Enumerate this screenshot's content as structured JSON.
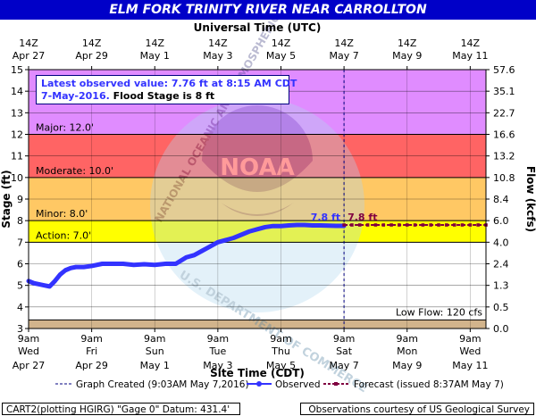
{
  "title": "ELM FORK TRINITY RIVER NEAR CARROLLTON",
  "top_axis_title": "Universal Time (UTC)",
  "bottom_axis_title": "Site Time (CDT)",
  "left_axis_title": "Stage (ft)",
  "right_axis_title": "Flow (kcfs)",
  "latest_box": {
    "line1": "Latest observed value: 7.76 ft at 8:15 AM CDT",
    "line2_date": "7-May-2016.",
    "line2_flood": "Flood Stage is 8 ft"
  },
  "low_flow_label": "Low Flow: 120 cfs",
  "legend": {
    "graph_created": "Graph Created (9:03AM May 7,2016)",
    "observed": "Observed",
    "forecast": "Forecast (issued 8:37AM May 7)"
  },
  "footer": {
    "left": "CART2(plotting HGIRG) \"Gage 0\" Datum: 431.4'",
    "right": "Observations courtesy of US Geological Survey"
  },
  "watermark": {
    "agency_text": "NATIONAL OCEANIC AND ATMOSPHERIC ADMINISTRATION",
    "department_text": "U.S. DEPARTMENT OF COMMERCE",
    "logo_text": "NOAA"
  },
  "colors": {
    "title_bar": "#0000c8",
    "major": "#ff6464",
    "moderate": "#ffc864",
    "minor": "#ffff00",
    "above_major": "#e08cff",
    "low_flow": "#d2b48c",
    "observed_line": "#3333ff",
    "forecast_line": "#800040",
    "graph_created_line": "#000080",
    "latest_box_text": "#3333ff",
    "axis_labels": "#000080"
  },
  "chart_data": {
    "type": "line",
    "title": "ELM FORK TRINITY RIVER NEAR CARROLLTON",
    "x_unit": "hours after 9am CDT Apr 27, 2016",
    "ylim": [
      3,
      15
    ],
    "xlim": [
      0,
      348
    ],
    "bottom_ticks": [
      {
        "x": 0,
        "day": "9am",
        "sub": "Wed",
        "date": "Apr 27"
      },
      {
        "x": 48,
        "day": "9am",
        "sub": "Fri",
        "date": "Apr 29"
      },
      {
        "x": 96,
        "day": "9am",
        "sub": "Sun",
        "date": "May 1"
      },
      {
        "x": 144,
        "day": "9am",
        "sub": "Tue",
        "date": "May 3"
      },
      {
        "x": 192,
        "day": "9am",
        "sub": "Thu",
        "date": "May 5"
      },
      {
        "x": 240,
        "day": "9am",
        "sub": "Sat",
        "date": "May 7"
      },
      {
        "x": 288,
        "day": "9am",
        "sub": "Mon",
        "date": "May 9"
      },
      {
        "x": 336,
        "day": "9am",
        "sub": "Wed",
        "date": "May 11"
      }
    ],
    "top_ticks": [
      {
        "x": 0,
        "hour": "14Z",
        "date": "Apr 27"
      },
      {
        "x": 48,
        "hour": "14Z",
        "date": "Apr 29"
      },
      {
        "x": 96,
        "hour": "14Z",
        "date": "May  1"
      },
      {
        "x": 144,
        "hour": "14Z",
        "date": "May  3"
      },
      {
        "x": 192,
        "hour": "14Z",
        "date": "May  5"
      },
      {
        "x": 240,
        "hour": "14Z",
        "date": "May  7"
      },
      {
        "x": 288,
        "hour": "14Z",
        "date": "May  9"
      },
      {
        "x": 336,
        "hour": "14Z",
        "date": "May 11"
      }
    ],
    "stage_ticks": [
      3,
      4,
      5,
      6,
      7,
      8,
      9,
      10,
      11,
      12,
      13,
      14,
      15
    ],
    "flow_ticks": [
      {
        "stage": 3,
        "label": "0.0"
      },
      {
        "stage": 4,
        "label": "0.5"
      },
      {
        "stage": 5,
        "label": "1.3"
      },
      {
        "stage": 6,
        "label": "2.4"
      },
      {
        "stage": 7,
        "label": "4.0"
      },
      {
        "stage": 8,
        "label": "6.0"
      },
      {
        "stage": 9,
        "label": "8.4"
      },
      {
        "stage": 10,
        "label": "10.8"
      },
      {
        "stage": 11,
        "label": "13.2"
      },
      {
        "stage": 12,
        "label": "16.6"
      },
      {
        "stage": 13,
        "label": "22.7"
      },
      {
        "stage": 14,
        "label": "35.1"
      },
      {
        "stage": 15,
        "label": "57.6"
      }
    ],
    "flood_categories": [
      {
        "name": "Low Flow",
        "from": 3,
        "to": 3.4,
        "label": "",
        "color": "#d2b48c"
      },
      {
        "name": "Action",
        "from": 7,
        "to": 8,
        "label": "Action: 7.0'",
        "color": "#ffff00"
      },
      {
        "name": "Minor",
        "from": 8,
        "to": 10,
        "label": "Minor: 8.0'",
        "color": "#ffc864"
      },
      {
        "name": "Moderate",
        "from": 10,
        "to": 12,
        "label": "Moderate: 10.0'",
        "color": "#ff6464"
      },
      {
        "name": "Major",
        "from": 12,
        "to": 15,
        "label": "Major: 12.0'",
        "color": "#e08cff"
      }
    ],
    "observed": {
      "x": [
        0,
        4,
        8,
        12,
        16,
        20,
        24,
        28,
        32,
        36,
        42,
        48,
        56,
        64,
        72,
        80,
        88,
        96,
        104,
        112,
        120,
        126,
        132,
        138,
        144,
        150,
        156,
        162,
        168,
        174,
        180,
        186,
        192,
        198,
        204,
        210,
        216,
        222,
        228,
        234,
        240
      ],
      "y": [
        5.2,
        5.1,
        5.05,
        5.0,
        4.95,
        5.2,
        5.5,
        5.7,
        5.8,
        5.85,
        5.85,
        5.9,
        6.0,
        6.0,
        6.0,
        5.95,
        5.98,
        5.95,
        6.0,
        6.0,
        6.3,
        6.4,
        6.6,
        6.8,
        7.0,
        7.1,
        7.2,
        7.35,
        7.5,
        7.6,
        7.7,
        7.75,
        7.75,
        7.78,
        7.8,
        7.8,
        7.78,
        7.78,
        7.77,
        7.76,
        7.76
      ]
    },
    "forecast": {
      "x": [
        240,
        348
      ],
      "y": [
        7.8,
        7.8
      ]
    },
    "observed_label": "7.8 ft",
    "forecast_label": "7.8 ft",
    "graph_created_x": 240
  }
}
